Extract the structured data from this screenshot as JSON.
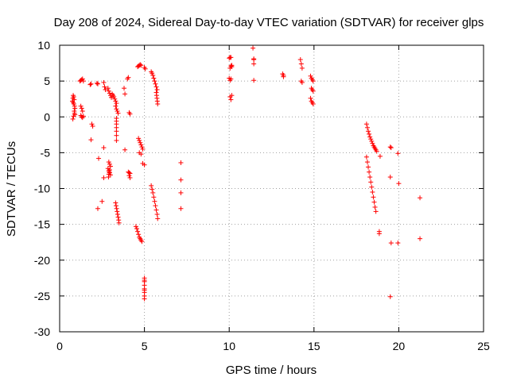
{
  "chart_data": {
    "type": "scatter",
    "title": "Day 208 of 2024, Sidereal Day-to-day VTEC variation (SDTVAR) for receiver glps",
    "xlabel": "GPS time / hours",
    "ylabel": "SDTVAR / TECUs",
    "xlim": [
      0,
      25
    ],
    "ylim": [
      -30,
      10
    ],
    "xticks": [
      0,
      5,
      10,
      15,
      20,
      25
    ],
    "yticks": [
      -30,
      -25,
      -20,
      -15,
      -10,
      -5,
      0,
      5,
      10
    ],
    "grid": true,
    "marker": "+",
    "color": "#ff0000",
    "series": [
      {
        "name": "SDTVAR",
        "x": [
          0.75,
          0.78,
          0.8,
          0.83,
          0.86,
          0.88,
          0.9,
          0.78,
          0.82,
          0.86,
          0.9,
          0.8,
          0.84,
          0.88,
          1.2,
          1.25,
          1.3,
          1.35,
          1.4,
          1.25,
          1.3,
          1.35,
          1.25,
          1.3,
          1.35,
          1.4,
          1.8,
          1.85,
          1.9,
          1.95,
          1.85,
          2.2,
          2.25,
          2.3,
          2.25,
          2.5,
          2.6,
          2.6,
          2.65,
          2.7,
          2.6,
          2.85,
          2.9,
          2.95,
          3.0,
          3.05,
          2.9,
          2.95,
          3.0,
          2.85,
          2.9,
          2.95,
          3.0,
          2.88,
          2.9,
          2.92,
          2.95,
          3.1,
          3.15,
          3.2,
          3.25,
          3.3,
          3.35,
          3.3,
          3.35,
          3.4,
          3.45,
          3.35,
          3.35,
          3.35,
          3.35,
          3.35,
          3.35,
          3.35,
          3.3,
          3.33,
          3.36,
          3.39,
          3.42,
          3.45,
          3.48,
          3.5,
          3.8,
          3.85,
          3.85,
          4.0,
          4.05,
          4.1,
          4.15,
          4.05,
          4.1,
          4.15,
          4.1,
          4.15,
          4.6,
          4.65,
          4.7,
          4.75,
          4.8,
          4.65,
          4.7,
          4.75,
          4.8,
          4.85,
          4.9,
          4.5,
          4.55,
          4.6,
          4.65,
          4.7,
          4.75,
          4.8,
          4.85,
          5.0,
          5.05,
          4.7,
          4.8,
          4.9,
          5.0,
          5.0,
          5.0,
          5.0,
          5.0,
          5.0,
          5.0,
          5.0,
          5.0,
          5.0,
          5.4,
          5.45,
          5.5,
          5.55,
          5.6,
          5.65,
          5.7,
          5.75,
          5.7,
          5.72,
          5.74,
          5.76,
          5.78,
          5.4,
          5.45,
          5.5,
          5.55,
          5.6,
          5.65,
          5.7,
          5.75,
          5.78,
          7.15,
          7.15,
          7.15,
          7.15,
          10.0,
          10.05,
          10.1,
          10.15,
          10.05,
          10.1,
          10.15,
          10.0,
          10.05,
          10.1,
          10.05,
          10.1,
          10.15,
          11.4,
          11.45,
          11.45,
          11.45,
          11.45,
          13.15,
          13.2,
          13.2,
          14.2,
          14.25,
          14.3,
          14.25,
          14.3,
          14.8,
          14.85,
          14.9,
          14.95,
          14.85,
          14.9,
          14.95,
          14.8,
          14.85,
          14.9,
          14.95,
          18.1,
          18.15,
          18.2,
          18.25,
          18.3,
          18.35,
          18.4,
          18.45,
          18.5,
          18.55,
          18.6,
          18.65,
          18.7,
          18.1,
          18.15,
          18.2,
          18.25,
          18.3,
          18.35,
          18.4,
          18.45,
          18.5,
          18.55,
          18.6,
          18.65,
          18.85,
          18.85,
          18.9,
          19.5,
          19.55,
          19.5,
          19.55,
          19.5,
          19.95,
          20.0,
          19.95,
          21.25,
          21.25
        ],
        "y": [
          2.2,
          2.6,
          3.0,
          2.8,
          2.4,
          0.5,
          0.3,
          -0.3,
          0.1,
          0.8,
          1.2,
          2.0,
          1.8,
          1.5,
          5.0,
          5.1,
          5.2,
          5.3,
          5.0,
          1.5,
          1.2,
          0.8,
          0.2,
          0.0,
          -0.1,
          0.1,
          4.5,
          4.6,
          -1.0,
          -1.3,
          -3.2,
          4.7,
          4.6,
          -5.8,
          -12.8,
          -11.8,
          -4.3,
          4.8,
          4.2,
          3.8,
          -8.5,
          4.0,
          3.6,
          3.3,
          3.0,
          2.7,
          -6.3,
          -6.6,
          -6.9,
          -7.2,
          -7.5,
          -7.8,
          -8.1,
          -8.4,
          -8.0,
          -7.7,
          -7.4,
          3.2,
          3.0,
          2.8,
          2.5,
          2.2,
          1.9,
          1.5,
          1.1,
          0.8,
          0.5,
          -0.2,
          -0.6,
          -1.0,
          -1.5,
          -2.0,
          -2.6,
          -3.3,
          -12.0,
          -12.4,
          -12.8,
          -13.2,
          -13.6,
          -14.0,
          -14.4,
          -14.8,
          4.0,
          3.2,
          -4.6,
          5.3,
          5.5,
          0.6,
          0.4,
          -7.7,
          -7.8,
          -7.9,
          -8.2,
          -8.5,
          7.0,
          7.1,
          7.2,
          7.3,
          7.2,
          -3.0,
          -3.3,
          -3.6,
          -3.9,
          -4.2,
          -4.5,
          -15.3,
          -15.6,
          -16.0,
          -16.4,
          -16.8,
          -17.0,
          -17.2,
          -17.4,
          6.9,
          6.7,
          -5.0,
          -5.2,
          -6.5,
          -6.7,
          -22.5,
          -23.0,
          -23.5,
          -24.0,
          -24.5,
          -25.0,
          -25.4,
          -22.8,
          -24.2,
          6.3,
          6.1,
          5.8,
          5.4,
          5.0,
          4.6,
          4.2,
          3.8,
          3.4,
          3.0,
          2.6,
          2.2,
          1.8,
          -9.6,
          -10.1,
          -10.6,
          -11.2,
          -11.8,
          -12.4,
          -13.0,
          -13.6,
          -14.2,
          -6.4,
          -8.8,
          -10.6,
          -12.8,
          8.2,
          8.3,
          8.3,
          7.0,
          6.8,
          7.1,
          7.2,
          5.4,
          5.1,
          5.3,
          2.8,
          2.4,
          3.0,
          9.6,
          8.1,
          8.0,
          7.4,
          5.1,
          6.0,
          5.8,
          5.6,
          8.0,
          7.4,
          6.8,
          5.0,
          4.8,
          5.7,
          5.4,
          5.2,
          5.0,
          4.0,
          3.8,
          3.6,
          2.6,
          2.2,
          2.0,
          1.8,
          -1.0,
          -1.5,
          -2.0,
          -2.4,
          -2.8,
          -3.1,
          -3.4,
          -3.7,
          -4.0,
          -4.2,
          -4.4,
          -4.6,
          -4.8,
          -5.6,
          -6.3,
          -7.0,
          -7.7,
          -8.4,
          -9.1,
          -9.8,
          -10.5,
          -11.2,
          -11.9,
          -12.6,
          -13.2,
          -16.0,
          -16.3,
          -5.5,
          -4.2,
          -4.3,
          -8.4,
          -17.6,
          -25.1,
          -5.1,
          -9.3,
          -17.6,
          -11.3,
          -17.0
        ]
      }
    ]
  }
}
